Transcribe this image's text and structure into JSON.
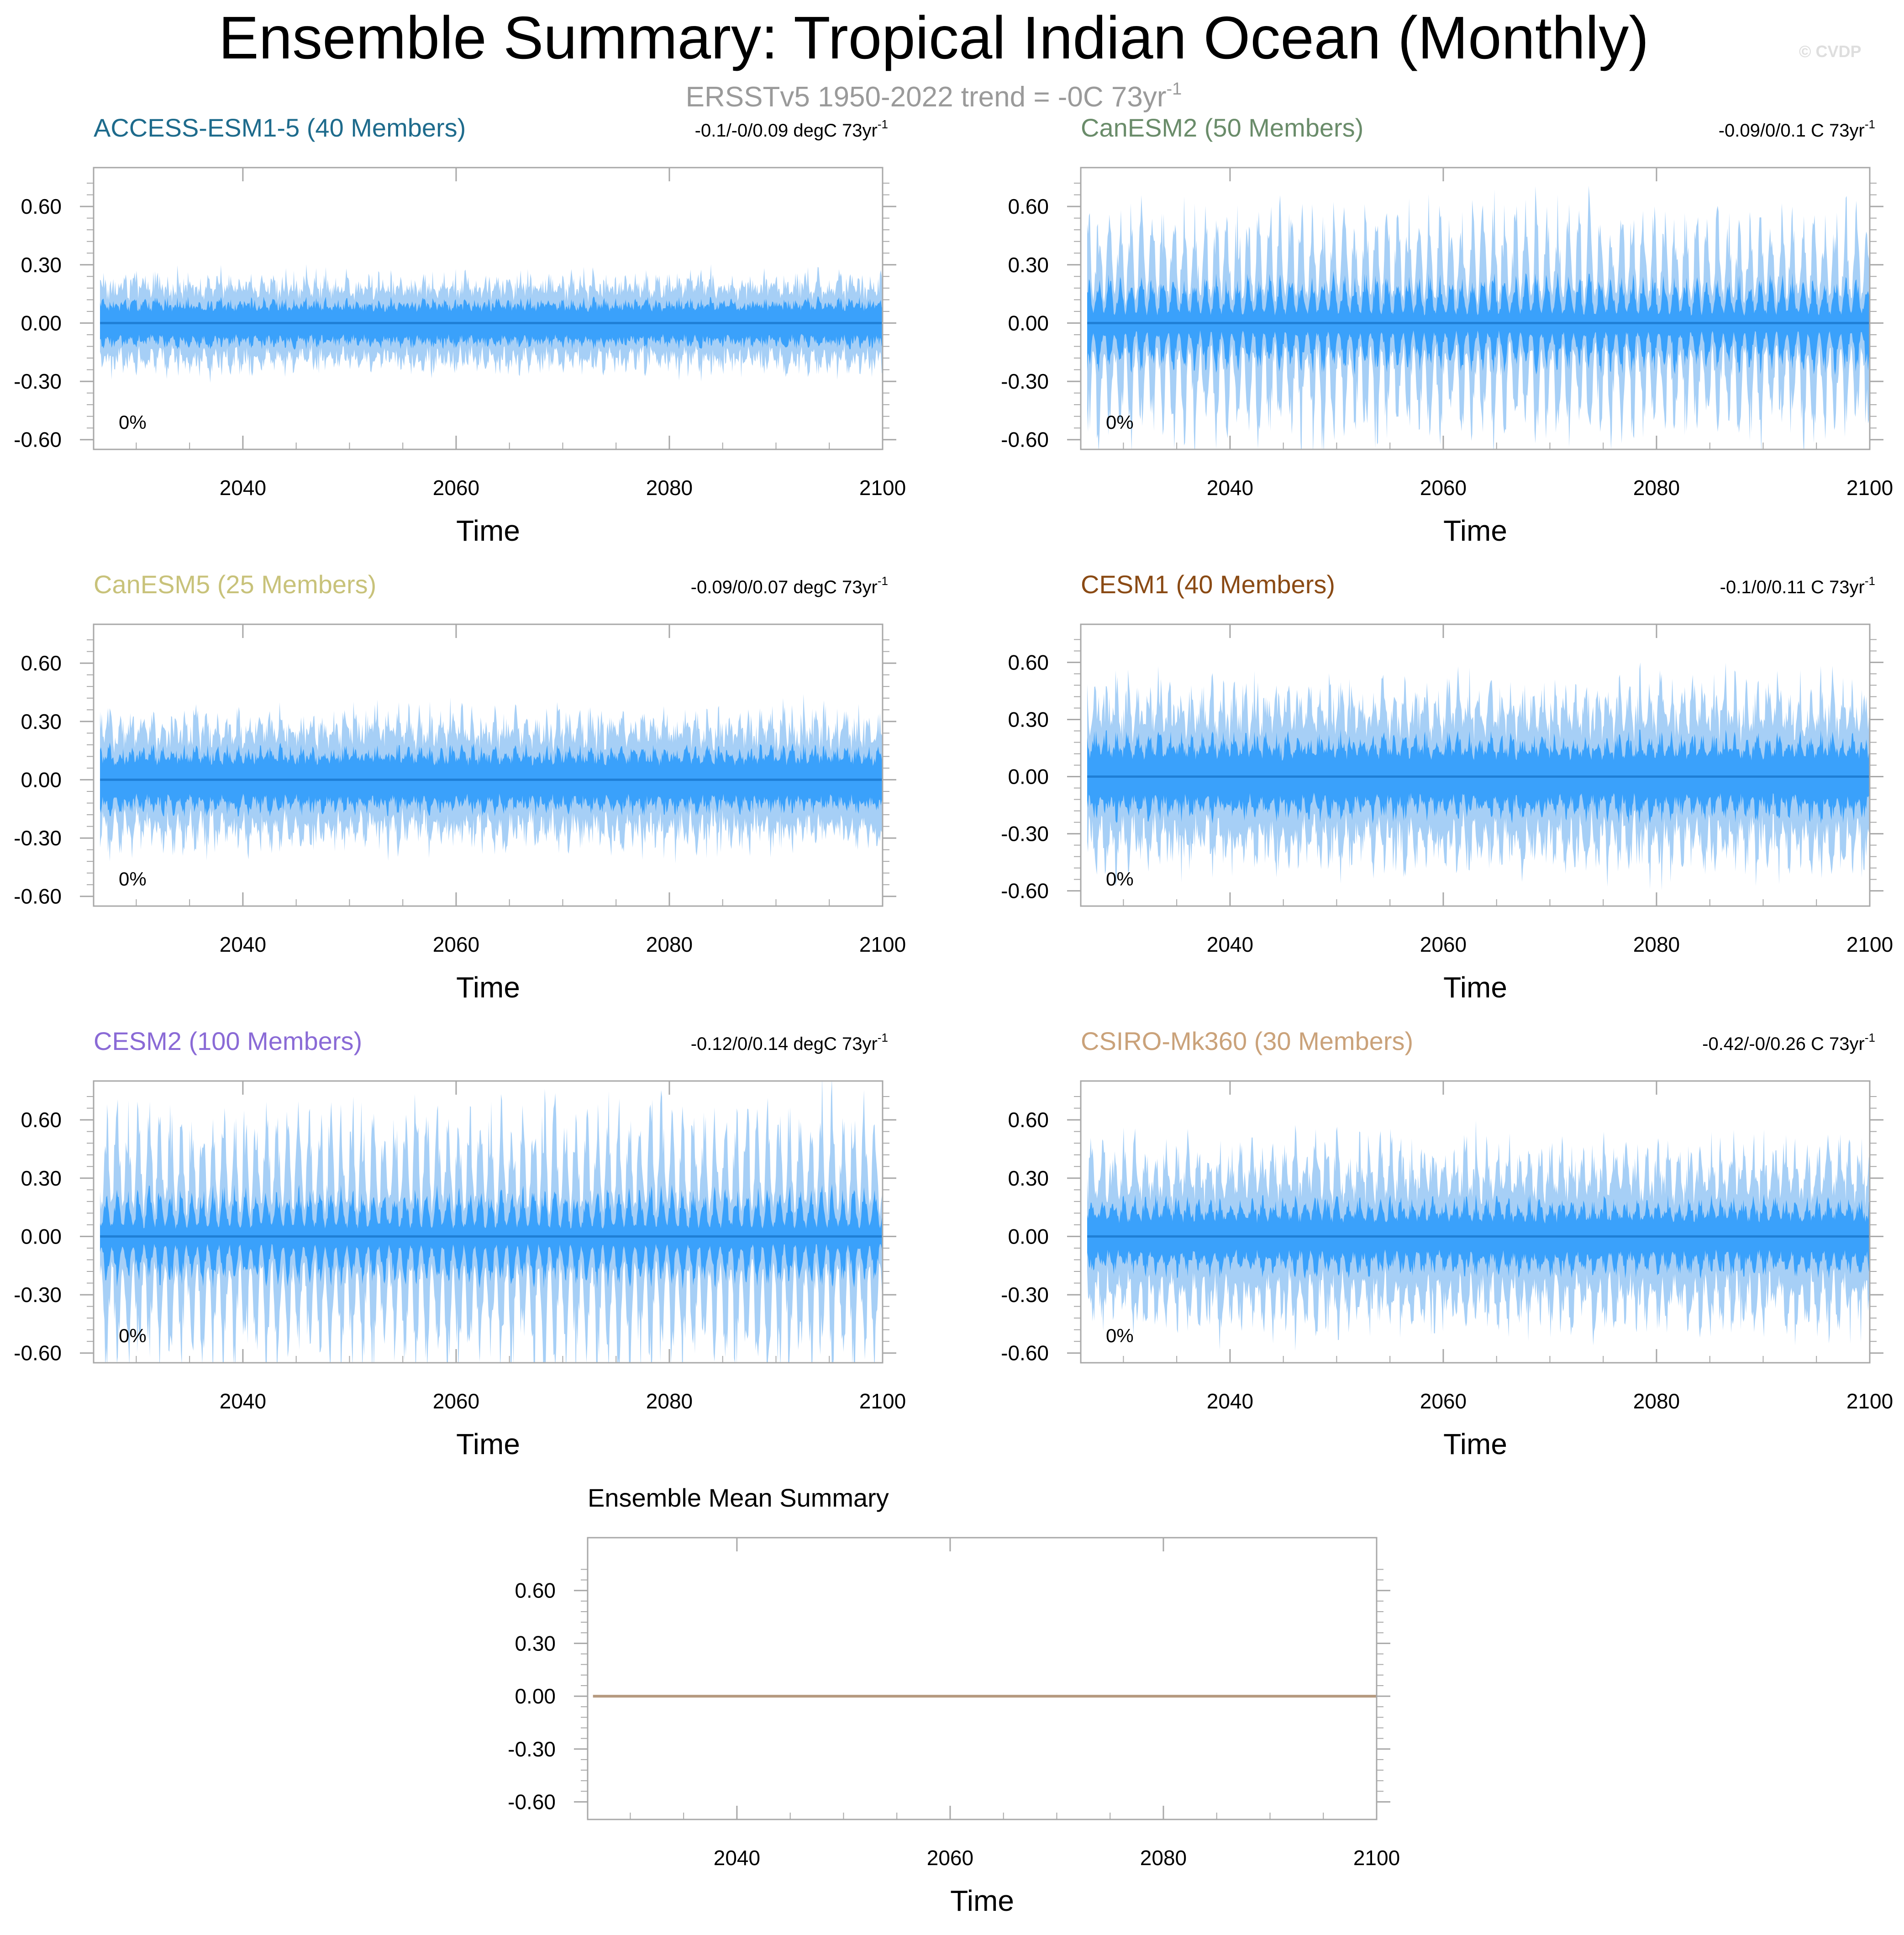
{
  "title": "Ensemble Summary: Tropical Indian Ocean (Monthly)",
  "subtitle": {
    "text": "ERSSTv5 1950-2022 trend = -0C 73yr",
    "sup": "-1"
  },
  "watermark": "© CVDP",
  "colors": {
    "envelope_light": "#a6cff6",
    "envelope_dark": "#3aa1fb",
    "mean_line": "#1f7fd6",
    "ensemble_mean_line": "#b59a80",
    "frame": "#a8a8a8"
  },
  "chart_data": [
    {
      "type": "area",
      "title": "ACCESS-ESM1-5 (40 Members)",
      "title_color": "#1e6b8c",
      "trend_label": "-0.1/-0/0.09 degC 73yr",
      "trend_sup": "-1",
      "percent_label": "0%",
      "xlabel": "Time",
      "xlim": [
        2026,
        2100
      ],
      "xticks": [
        2040,
        2060,
        2080,
        2100
      ],
      "ylim": [
        -0.65,
        0.8
      ],
      "yticks": [
        0.6,
        0.3,
        0.0,
        -0.3,
        -0.6
      ],
      "yticklabels": [
        "0.60",
        "0.30",
        "0.00",
        "-0.30",
        "-0.60"
      ],
      "inner_range": 0.12,
      "outer_range": 0.22,
      "seasonal": 0.15,
      "mean_value": 0.0
    },
    {
      "type": "area",
      "title": "CanESM2 (50 Members)",
      "title_color": "#6a8c6a",
      "trend_label": "-0.09/0/0.1 C 73yr",
      "trend_sup": "-1",
      "percent_label": "0%",
      "xlabel": "Time",
      "xlim": [
        2026,
        2100
      ],
      "xticks": [
        2040,
        2060,
        2080,
        2100
      ],
      "ylim": [
        -0.65,
        0.8
      ],
      "yticks": [
        0.6,
        0.3,
        0.0,
        -0.3,
        -0.6
      ],
      "yticklabels": [
        "0.60",
        "0.30",
        "0.00",
        "-0.30",
        "-0.60"
      ],
      "inner_range": 0.17,
      "outer_range": 0.38,
      "seasonal": 0.6,
      "mean_value": 0.0
    },
    {
      "type": "area",
      "title": "CanESM5 (25 Members)",
      "title_color": "#c8c27a",
      "trend_label": "-0.09/0/0.07 degC 73yr",
      "trend_sup": "-1",
      "percent_label": "0%",
      "xlabel": "Time",
      "xlim": [
        2026,
        2100
      ],
      "xticks": [
        2040,
        2060,
        2080,
        2100
      ],
      "ylim": [
        -0.65,
        0.8
      ],
      "yticks": [
        0.6,
        0.3,
        0.0,
        -0.3,
        -0.6
      ],
      "yticklabels": [
        "0.60",
        "0.30",
        "0.00",
        "-0.30",
        "-0.60"
      ],
      "inner_range": 0.16,
      "outer_range": 0.3,
      "seasonal": 0.2,
      "mean_value": 0.0
    },
    {
      "type": "area",
      "title": "CESM1 (40 Members)",
      "title_color": "#8a4a14",
      "trend_label": "-0.1/0/0.11 C 73yr",
      "trend_sup": "-1",
      "percent_label": "0%",
      "xlabel": "Time",
      "xlim": [
        2026,
        2100
      ],
      "xticks": [
        2040,
        2060,
        2080,
        2100
      ],
      "ylim": [
        -0.68,
        0.8
      ],
      "yticks": [
        0.6,
        0.3,
        0.0,
        -0.3,
        -0.6
      ],
      "yticklabels": [
        "0.60",
        "0.30",
        "0.00",
        "-0.30",
        "-0.60"
      ],
      "inner_range": 0.2,
      "outer_range": 0.4,
      "seasonal": 0.25,
      "mean_value": 0.0
    },
    {
      "type": "area",
      "title": "CESM2 (100 Members)",
      "title_color": "#8a6ad6",
      "trend_label": "-0.12/0/0.14 degC 73yr",
      "trend_sup": "-1",
      "percent_label": "0%",
      "xlabel": "Time",
      "xlim": [
        2026,
        2100
      ],
      "xticks": [
        2040,
        2060,
        2080,
        2100
      ],
      "ylim": [
        -0.65,
        0.8
      ],
      "yticks": [
        0.6,
        0.3,
        0.0,
        -0.3,
        -0.6
      ],
      "yticklabels": [
        "0.60",
        "0.30",
        "0.00",
        "-0.30",
        "-0.60"
      ],
      "inner_range": 0.17,
      "outer_range": 0.43,
      "seasonal": 0.6,
      "mean_value": 0.0
    },
    {
      "type": "area",
      "title": "CSIRO-Mk360 (30 Members)",
      "title_color": "#caa27a",
      "trend_label": "-0.42/-0/0.26 C 73yr",
      "trend_sup": "-1",
      "percent_label": "0%",
      "xlabel": "Time",
      "xlim": [
        2026,
        2100
      ],
      "xticks": [
        2040,
        2060,
        2080,
        2100
      ],
      "ylim": [
        -0.65,
        0.8
      ],
      "yticks": [
        0.6,
        0.3,
        0.0,
        -0.3,
        -0.6
      ],
      "yticklabels": [
        "0.60",
        "0.30",
        "0.00",
        "-0.30",
        "-0.60"
      ],
      "inner_range": 0.17,
      "outer_range": 0.38,
      "seasonal": 0.3,
      "mean_value": 0.0
    },
    {
      "type": "line",
      "title": "Ensemble Mean Summary",
      "title_color": "#000000",
      "xlabel": "Time",
      "xlim": [
        2026,
        2100
      ],
      "xticks": [
        2040,
        2060,
        2080,
        2100
      ],
      "ylim": [
        -0.7,
        0.9
      ],
      "yticks": [
        0.6,
        0.3,
        0.0,
        -0.3,
        -0.6
      ],
      "yticklabels": [
        "0.60",
        "0.30",
        "0.00",
        "-0.30",
        "-0.60"
      ],
      "x": [
        2026.5,
        2100
      ],
      "y": [
        0.0,
        0.0
      ]
    }
  ]
}
